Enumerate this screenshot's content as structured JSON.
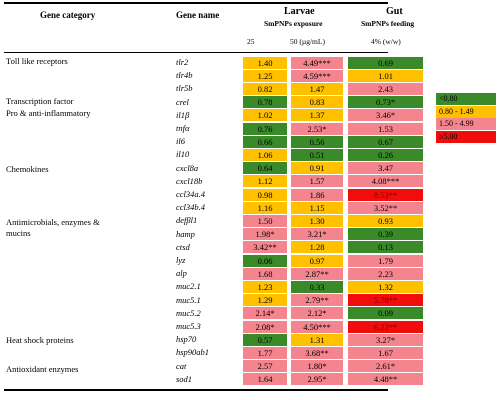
{
  "header": {
    "gene_category": "Gene category",
    "gene_name": "Gene name",
    "larvae": "Larvae",
    "larvae_sub": "SmPNPs exposure",
    "gut": "Gut",
    "gut_sub": "SmPNPs feeding",
    "dose_25": "25",
    "dose_50": "50 (µg/mL)",
    "dose_gut": "4% (w/w)"
  },
  "colors": {
    "green": "#3a8a2a",
    "yellow": "#ffc000",
    "pink": "#f4858e",
    "red": "#f20d0d"
  },
  "categories": [
    "Toll like receptors",
    "Transcription factor",
    "Pro & anti-inflammatory",
    "Chemokines",
    "Antimicrobials, enzymes &",
    "mucins",
    "Heat shock proteins",
    "Antioxidant enzymes"
  ],
  "rows": [
    {
      "gene": "tlr2",
      "c25": "1.40",
      "k25": "yellow",
      "c50": "4.49***",
      "k50": "pink",
      "gut": "0.69",
      "kg": "green"
    },
    {
      "gene": "tlr4b",
      "c25": "1.25",
      "k25": "yellow",
      "c50": "4.59***",
      "k50": "pink",
      "gut": "1.01",
      "kg": "yellow"
    },
    {
      "gene": "tlr5b",
      "c25": "0.82",
      "k25": "yellow",
      "c50": "1.47",
      "k50": "yellow",
      "gut": "2.43",
      "kg": "pink"
    },
    {
      "gene": "crel",
      "c25": "0.78",
      "k25": "green",
      "c50": "0.83",
      "k50": "yellow",
      "gut": "0.73*",
      "kg": "green"
    },
    {
      "gene": "il1β",
      "c25": "1.02",
      "k25": "yellow",
      "c50": "1.37",
      "k50": "yellow",
      "gut": "3.46*",
      "kg": "pink"
    },
    {
      "gene": "tnfα",
      "c25": "0.76",
      "k25": "green",
      "c50": "2.53*",
      "k50": "pink",
      "gut": "1.53",
      "kg": "pink"
    },
    {
      "gene": "il6",
      "c25": "0.66",
      "k25": "green",
      "c50": "0.56",
      "k50": "green",
      "gut": "0.67",
      "kg": "green"
    },
    {
      "gene": "il10",
      "c25": "1.06",
      "k25": "yellow",
      "c50": "0.51",
      "k50": "green",
      "gut": "0.26",
      "kg": "green"
    },
    {
      "gene": "cxcl8a",
      "c25": "0.64",
      "k25": "green",
      "c50": "0.91",
      "k50": "yellow",
      "gut": "3.47",
      "kg": "pink"
    },
    {
      "gene": "cxcl18b",
      "c25": "1.12",
      "k25": "yellow",
      "c50": "1.57",
      "k50": "pink",
      "gut": "4.08***",
      "kg": "pink"
    },
    {
      "gene": "ccl34a.4",
      "c25": "0.98",
      "k25": "yellow",
      "c50": "1.86",
      "k50": "pink",
      "gut": "8.53**",
      "kg": "red"
    },
    {
      "gene": "ccl34b.4",
      "c25": "1.16",
      "k25": "yellow",
      "c50": "1.15",
      "k50": "yellow",
      "gut": "3.52**",
      "kg": "pink"
    },
    {
      "gene": "defβl1",
      "c25": "1.50",
      "k25": "pink",
      "c50": "1.30",
      "k50": "yellow",
      "gut": "0.93",
      "kg": "yellow"
    },
    {
      "gene": "hamp",
      "c25": "1.98*",
      "k25": "pink",
      "c50": "3.21*",
      "k50": "pink",
      "gut": "0.39",
      "kg": "green"
    },
    {
      "gene": "ctsd",
      "c25": "3.42**",
      "k25": "pink",
      "c50": "1.28",
      "k50": "yellow",
      "gut": "0.13",
      "kg": "green"
    },
    {
      "gene": "lyz",
      "c25": "0.06",
      "k25": "green",
      "c50": "0.97",
      "k50": "yellow",
      "gut": "1.79",
      "kg": "pink"
    },
    {
      "gene": "alp",
      "c25": "1.68",
      "k25": "pink",
      "c50": "2.87**",
      "k50": "pink",
      "gut": "2.23",
      "kg": "pink"
    },
    {
      "gene": "muc2.1",
      "c25": "1.23",
      "k25": "yellow",
      "c50": "0.33",
      "k50": "green",
      "gut": "1.32",
      "kg": "yellow"
    },
    {
      "gene": "muc5.1",
      "c25": "1.29",
      "k25": "yellow",
      "c50": "2.79**",
      "k50": "pink",
      "gut": "5.78**",
      "kg": "red"
    },
    {
      "gene": "muc5.2",
      "c25": "2.14*",
      "k25": "pink",
      "c50": "2.12*",
      "k50": "pink",
      "gut": "0.09",
      "kg": "green"
    },
    {
      "gene": "muc5.3",
      "c25": "2.08*",
      "k25": "pink",
      "c50": "4.50***",
      "k50": "pink",
      "gut": "6.22**",
      "kg": "red"
    },
    {
      "gene": "hsp70",
      "c25": "0.57",
      "k25": "green",
      "c50": "1.31",
      "k50": "yellow",
      "gut": "3.27*",
      "kg": "pink"
    },
    {
      "gene": "hsp90ab1",
      "c25": "1.77",
      "k25": "pink",
      "c50": "3.68**",
      "k50": "pink",
      "gut": "1.67",
      "kg": "pink"
    },
    {
      "gene": "cat",
      "c25": "2.57",
      "k25": "pink",
      "c50": "1.80*",
      "k50": "pink",
      "gut": "2.61*",
      "kg": "pink"
    },
    {
      "gene": "sod1",
      "c25": "1.64",
      "k25": "pink",
      "c50": "2.95*",
      "k50": "pink",
      "gut": "4.48**",
      "kg": "pink"
    }
  ],
  "legend": [
    {
      "label": "<0.80",
      "color": "green"
    },
    {
      "label": "0.80 - 1.49",
      "color": "yellow"
    },
    {
      "label": "1.50 - 4.99",
      "color": "pink"
    },
    {
      "label": "≥5.00",
      "color": "red"
    }
  ]
}
